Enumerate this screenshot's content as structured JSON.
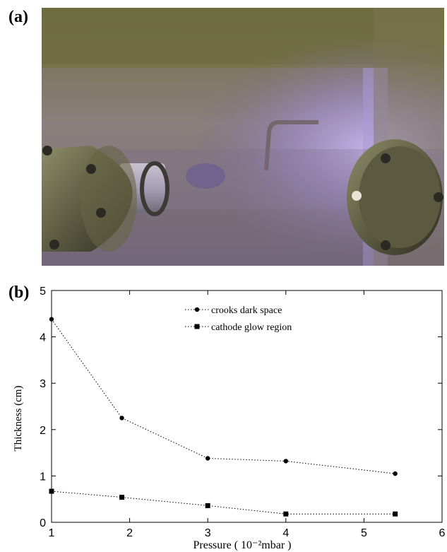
{
  "figure": {
    "panel_a_label": "(a)",
    "panel_b_label": "(b)"
  },
  "photo": {
    "description_icon": "plasma-chamber-photo"
  },
  "chart_data": {
    "type": "line",
    "xlabel": "Pressure ( 10⁻²mbar )",
    "ylabel": "Thickness (cm)",
    "xlim": [
      1,
      6
    ],
    "ylim": [
      0,
      5
    ],
    "xticks": [
      1,
      2,
      3,
      4,
      5,
      6
    ],
    "yticks": [
      0,
      1,
      2,
      3,
      4,
      5
    ],
    "grid": false,
    "legend_position": "top-center",
    "series": [
      {
        "name": "crooks dark space",
        "marker": "circle",
        "x": [
          1,
          1.9,
          3,
          4,
          5.4
        ],
        "y": [
          4.38,
          2.25,
          1.38,
          1.32,
          1.05
        ]
      },
      {
        "name": "cathode glow region",
        "marker": "square",
        "x": [
          1,
          1.9,
          3,
          4,
          5.4
        ],
        "y": [
          0.67,
          0.54,
          0.36,
          0.18,
          0.18
        ]
      }
    ]
  }
}
